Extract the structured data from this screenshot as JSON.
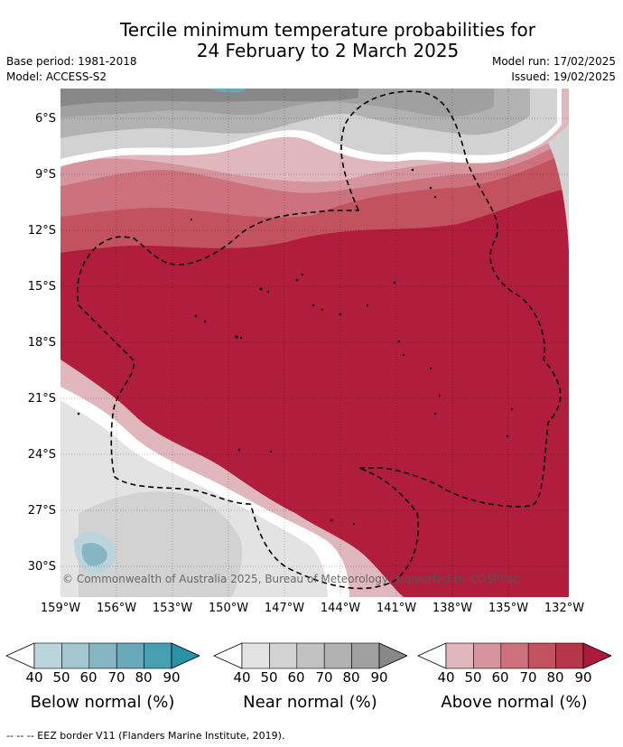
{
  "title_line1": "Tercile minimum temperature probabilities for",
  "title_line2": "24 February to 2 March 2025",
  "meta": {
    "base_period": "Base period: 1981-2018",
    "model": "Model: ACCESS-S2",
    "model_run": "Model run: 17/02/2025",
    "issued": "Issued: 19/02/2025"
  },
  "map": {
    "lat_labels": [
      "6°S",
      "9°S",
      "12°S",
      "15°S",
      "18°S",
      "21°S",
      "24°S",
      "27°S",
      "30°S"
    ],
    "lon_labels": [
      "159°W",
      "156°W",
      "153°W",
      "150°W",
      "147°W",
      "144°W",
      "141°W",
      "138°W",
      "135°W",
      "132°W"
    ],
    "copyright": "© Commonwealth of Australia 2025, Bureau of Meteorology, supported by COSPPac"
  },
  "legends": [
    {
      "caption": "Below normal (%)",
      "ticks": [
        "40",
        "50",
        "60",
        "70",
        "80",
        "90"
      ],
      "colors": [
        "#ffffff",
        "#bcd4dc",
        "#a4c6d0",
        "#86b6c3",
        "#69a8b8",
        "#46a0b2",
        "#2a91a7"
      ]
    },
    {
      "caption": "Near normal (%)",
      "ticks": [
        "40",
        "50",
        "60",
        "70",
        "80",
        "90"
      ],
      "colors": [
        "#ffffff",
        "#e3e3e3",
        "#d2d2d2",
        "#c2c2c2",
        "#b2b2b2",
        "#a0a0a0",
        "#888888"
      ]
    },
    {
      "caption": "Above normal (%)",
      "ticks": [
        "40",
        "50",
        "60",
        "70",
        "80",
        "90"
      ],
      "colors": [
        "#ffffff",
        "#e0b7bd",
        "#d6959d",
        "#cc717d",
        "#c3525f",
        "#b6364a",
        "#ad1a3b"
      ]
    }
  ],
  "footnote": "-- -- -- EEZ border V11 (Flanders Marine Institute, 2019)."
}
